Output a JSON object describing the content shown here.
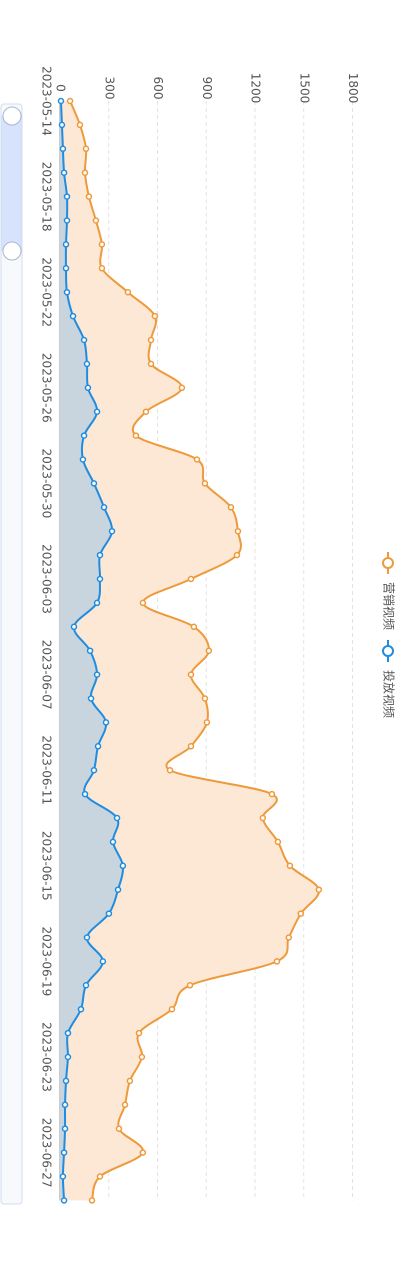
{
  "chart_data": {
    "type": "line",
    "area": true,
    "smooth": true,
    "grid": true,
    "legend": "right",
    "categories": [
      "2023-05-14",
      null,
      null,
      null,
      "2023-05-18",
      null,
      null,
      null,
      "2023-05-22",
      null,
      null,
      null,
      "2023-05-26",
      null,
      null,
      null,
      "2023-05-30",
      null,
      null,
      null,
      "2023-06-03",
      null,
      null,
      null,
      "2023-06-07",
      null,
      null,
      null,
      "2023-06-11",
      null,
      null,
      null,
      "2023-06-15",
      null,
      null,
      null,
      "2023-06-19",
      null,
      null,
      null,
      "2023-06-23",
      null,
      null,
      null,
      "2023-06-27",
      null,
      null
    ],
    "ylim": [
      0,
      1800
    ],
    "yticks": [
      0,
      300,
      600,
      900,
      1200,
      1500,
      1800
    ],
    "series": [
      {
        "name": "营销视频",
        "color": "#ee9a3a",
        "area_color": "#fde8d6",
        "values": [
          62,
          123,
          160,
          154,
          178,
          221,
          258,
          258,
          418,
          584,
          560,
          560,
          750,
          529,
          467,
          843,
          892,
          1052,
          1095,
          1089,
          806,
          510,
          824,
          916,
          806,
          892,
          904,
          806,
          677,
          1304,
          1248,
          1341,
          1415,
          1593,
          1482,
          1408,
          1335,
          800,
          689,
          486,
          504,
          430,
          400,
          363,
          510,
          246,
          197
        ]
      },
      {
        "name": "投放视频",
        "color": "#1f8ce0",
        "area_color": "#c8d5de",
        "values": [
          6,
          12,
          18,
          25,
          43,
          43,
          37,
          37,
          43,
          80,
          148,
          166,
          172,
          228,
          148,
          141,
          209,
          271,
          320,
          246,
          246,
          228,
          86,
          185,
          228,
          191,
          283,
          234,
          209,
          154,
          351,
          326,
          387,
          357,
          301,
          166,
          264,
          160,
          129,
          49,
          49,
          37,
          31,
          31,
          25,
          18,
          25
        ]
      }
    ]
  }
}
